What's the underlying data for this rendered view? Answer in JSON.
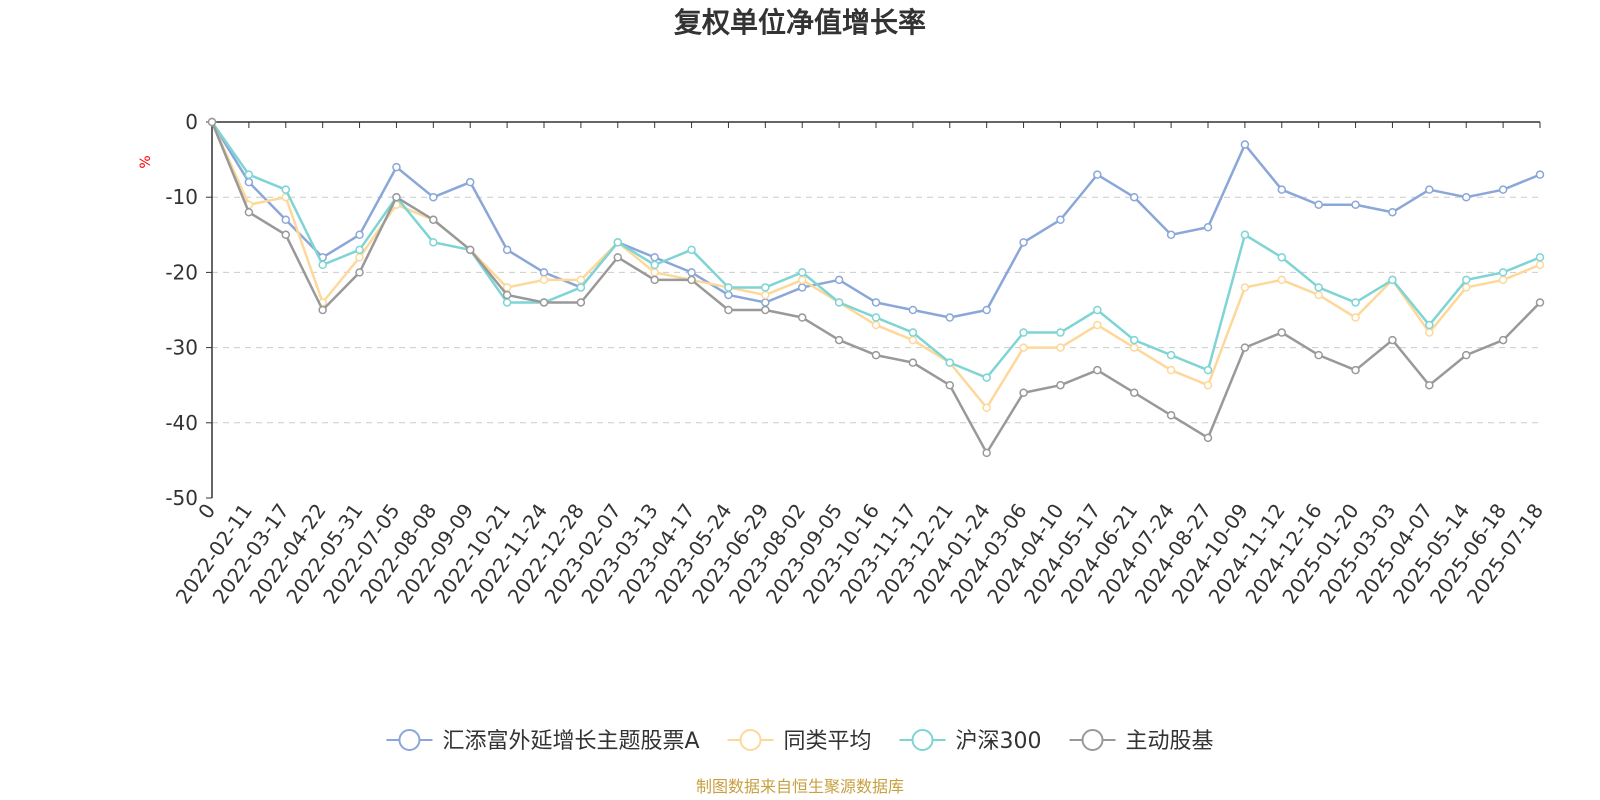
{
  "chart_data": {
    "type": "line",
    "title": "复权单位净值增长率",
    "ylabel": "%",
    "ylim": [
      -50,
      0
    ],
    "yticks": [
      0,
      -10,
      -20,
      -30,
      -40,
      -50
    ],
    "grid": "horizontal dashed",
    "legend_position": "bottom",
    "x_tick_labels": [
      "0",
      "2022-02-11",
      "2022-03-17",
      "2022-04-22",
      "2022-05-31",
      "2022-07-05",
      "2022-08-08",
      "2022-09-09",
      "2022-10-21",
      "2022-11-24",
      "2022-12-28",
      "2023-02-07",
      "2023-03-13",
      "2023-04-17",
      "2023-05-24",
      "2023-06-29",
      "2023-08-02",
      "2023-09-05",
      "2023-10-16",
      "2023-11-17",
      "2023-12-21",
      "2024-01-24",
      "2024-03-06",
      "2024-04-10",
      "2024-05-17",
      "2024-06-21",
      "2024-07-24",
      "2024-08-27",
      "2024-10-09",
      "2024-11-12",
      "2024-12-16",
      "2025-01-20",
      "2025-03-03",
      "2025-04-07",
      "2025-05-14",
      "2025-06-18",
      "2025-07-18"
    ],
    "x": [
      "0",
      "2022-02-11",
      "2022-03-17",
      "2022-04-22",
      "2022-05-31",
      "2022-07-05",
      "2022-08-08",
      "2022-09-09",
      "2022-10-21",
      "2022-11-24",
      "2022-12-28",
      "2023-02-07",
      "2023-03-13",
      "2023-04-17",
      "2023-05-24",
      "2023-06-29",
      "2023-08-02",
      "2023-09-05",
      "2023-10-16",
      "2023-11-17",
      "2023-12-21",
      "2024-01-24",
      "2024-03-06",
      "2024-04-10",
      "2024-05-17",
      "2024-06-21",
      "2024-07-24",
      "2024-08-27",
      "2024-10-09",
      "2024-11-12",
      "2024-12-16",
      "2025-01-20",
      "2025-03-03",
      "2025-04-07",
      "2025-05-14",
      "2025-06-18",
      "2025-07-18"
    ],
    "series": [
      {
        "name": "汇添富外延增长主题股票A",
        "color": "#8ba7d9",
        "values": [
          0,
          -8,
          -13,
          -18,
          -15,
          -6,
          -10,
          -8,
          -17,
          -20,
          -22,
          -16,
          -18,
          -20,
          -23,
          -24,
          -22,
          -21,
          -24,
          -25,
          -26,
          -25,
          -16,
          -13,
          -7,
          -10,
          -15,
          -14,
          -3,
          -9,
          -11,
          -11,
          -12,
          -9,
          -10,
          -9,
          -7
        ]
      },
      {
        "name": "同类平均",
        "color": "#fdd89a",
        "values": [
          0,
          -11,
          -10,
          -24,
          -18,
          -11,
          -13,
          -17,
          -22,
          -21,
          -21,
          -16,
          -20,
          -21,
          -22,
          -23,
          -21,
          -24,
          -27,
          -29,
          -32,
          -38,
          -30,
          -30,
          -27,
          -30,
          -33,
          -35,
          -22,
          -21,
          -23,
          -26,
          -21,
          -28,
          -22,
          -21,
          -19
        ]
      },
      {
        "name": "沪深300",
        "color": "#7fd4d4",
        "values": [
          0,
          -7,
          -9,
          -19,
          -17,
          -10,
          -16,
          -17,
          -24,
          -24,
          -22,
          -16,
          -19,
          -17,
          -22,
          -22,
          -20,
          -24,
          -26,
          -28,
          -32,
          -34,
          -28,
          -28,
          -25,
          -29,
          -31,
          -33,
          -15,
          -18,
          -22,
          -24,
          -21,
          -27,
          -21,
          -20,
          -18
        ]
      },
      {
        "name": "主动股基",
        "color": "#999999",
        "values": [
          0,
          -12,
          -15,
          -25,
          -20,
          -10,
          -13,
          -17,
          -23,
          -24,
          -24,
          -18,
          -21,
          -21,
          -25,
          -25,
          -26,
          -29,
          -31,
          -32,
          -35,
          -44,
          -36,
          -35,
          -33,
          -36,
          -39,
          -42,
          -30,
          -28,
          -31,
          -33,
          -29,
          -35,
          -31,
          -29,
          -24
        ]
      }
    ]
  },
  "footer": "制图数据来自恒生聚源数据库"
}
